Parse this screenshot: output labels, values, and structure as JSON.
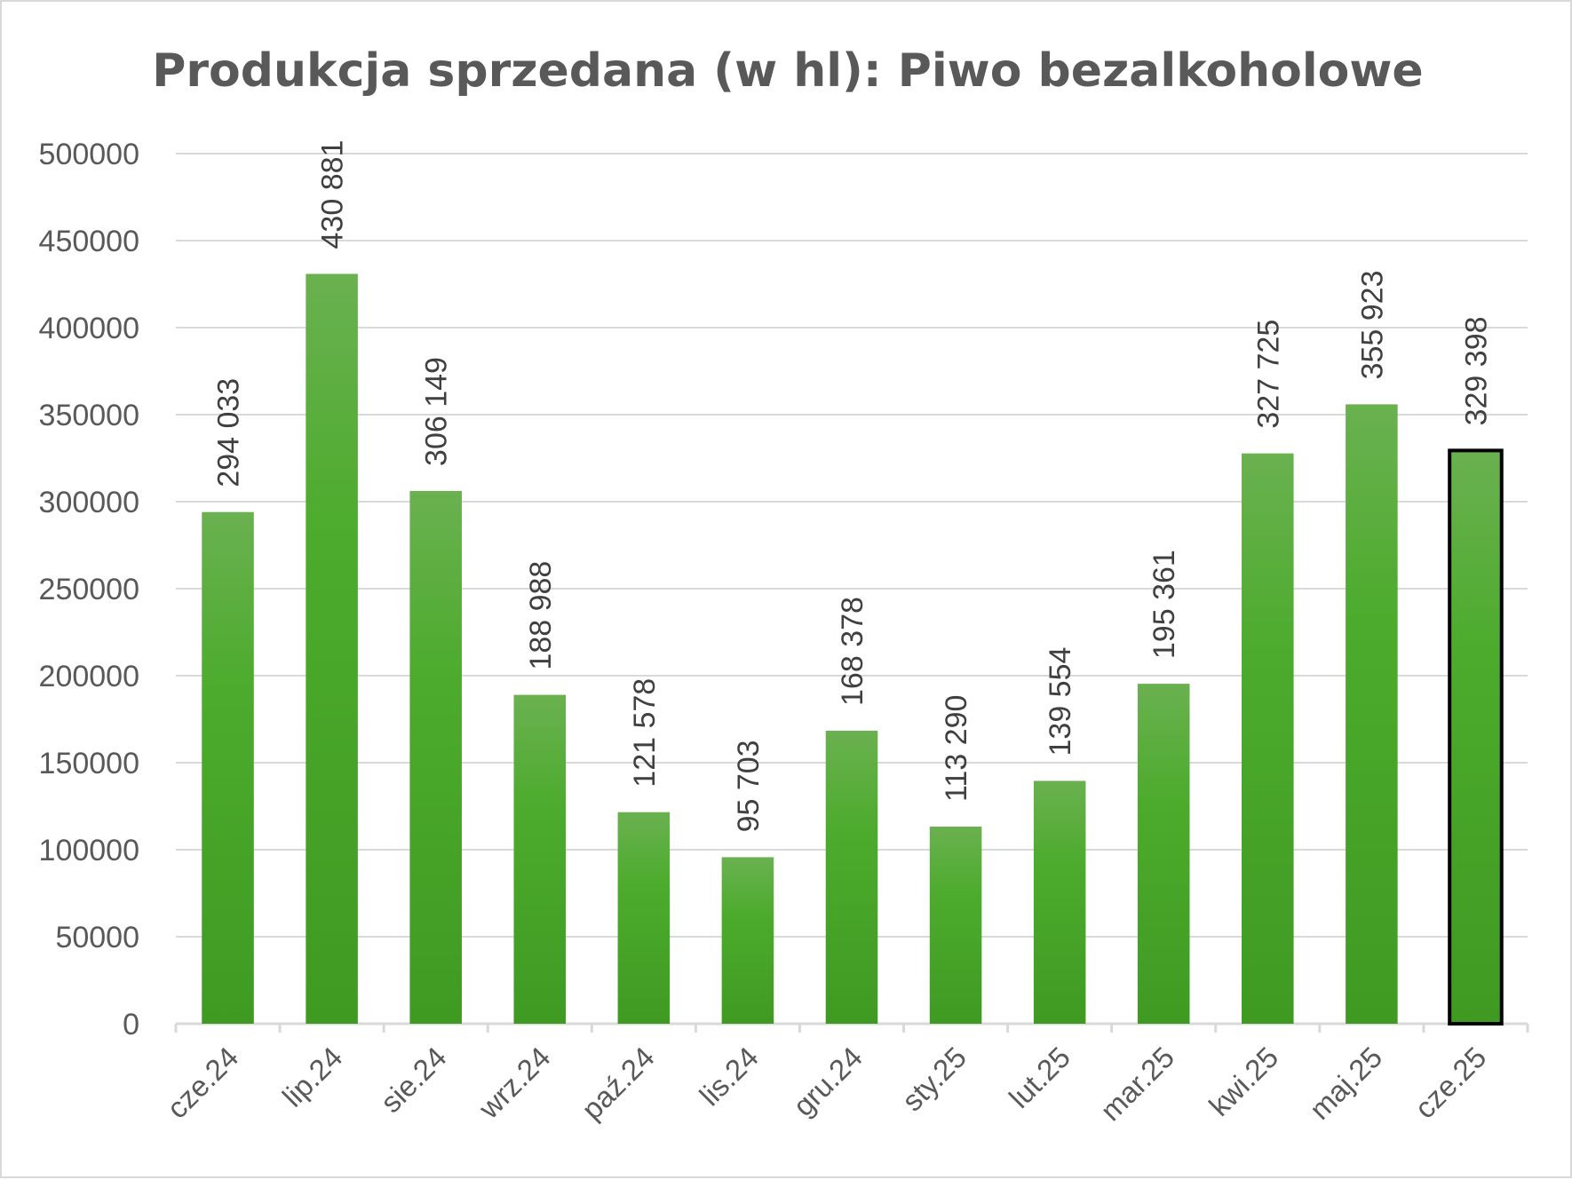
{
  "chart_data": {
    "type": "bar",
    "title": "Produkcja sprzedana (w hl): Piwo bezalkoholowe",
    "xlabel": "",
    "ylabel": "",
    "categories": [
      "cze.24",
      "lip.24",
      "sie.24",
      "wrz.24",
      "paź.24",
      "lis.24",
      "gru.24",
      "sty.25",
      "lut.25",
      "mar.25",
      "kwi.25",
      "maj.25",
      "cze.25"
    ],
    "values": [
      294033,
      430881,
      306149,
      188988,
      121578,
      95703,
      168378,
      113290,
      139554,
      195361,
      327725,
      355923,
      329398
    ],
    "data_labels": [
      "294 033",
      "430 881",
      "306 149",
      "188 988",
      "121 578",
      "95 703",
      "168 378",
      "113 290",
      "139 554",
      "195 361",
      "327 725",
      "355 923",
      "329 398"
    ],
    "ylim": [
      0,
      500000
    ],
    "yticks": [
      "0",
      "50000",
      "100000",
      "150000",
      "200000",
      "250000",
      "300000",
      "350000",
      "400000",
      "450000",
      "500000"
    ],
    "grid": true,
    "legend": "none",
    "highlighted_category": "cze.25",
    "colors": {
      "bar_top": "#6ab150",
      "bar_mid": "#4cab2c",
      "bar_bottom": "#3f9a22",
      "highlight_border": "#000000",
      "text": "#595959",
      "grid": "#d9d9d9"
    }
  }
}
